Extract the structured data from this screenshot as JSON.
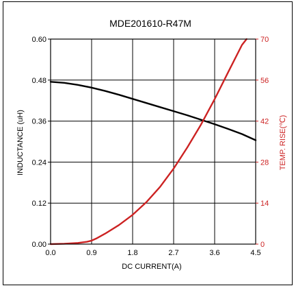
{
  "chart_data": {
    "type": "line",
    "title": "MDE201610-R47M",
    "xlabel": "DC CURRENT(A)",
    "ylabel_left": "INDUCTANCE (uH)",
    "ylabel_right": "TEMP. RISE(℃)",
    "xlim": [
      0,
      4.5
    ],
    "ylim_left": [
      0,
      0.6
    ],
    "ylim_right": [
      0,
      70
    ],
    "x_ticks": [
      "0.0",
      "0.9",
      "1.8",
      "2.7",
      "3.6",
      "4.5"
    ],
    "y_ticks_left": [
      "0.00",
      "0.12",
      "0.24",
      "0.36",
      "0.48",
      "0.60"
    ],
    "y_ticks_right": [
      "0",
      "14",
      "28",
      "42",
      "56",
      "70"
    ],
    "grid": true,
    "colors": {
      "inductance": "#000000",
      "temp_rise": "#cc2222",
      "right_axis_text": "#cc2222"
    },
    "series": [
      {
        "axis": "left",
        "x": [
          0,
          0.3,
          0.6,
          0.9,
          1.2,
          1.5,
          1.8,
          2.1,
          2.4,
          2.7,
          3.0,
          3.3,
          3.6,
          3.9,
          4.2,
          4.5
        ],
        "values": [
          0.475,
          0.472,
          0.466,
          0.458,
          0.448,
          0.437,
          0.425,
          0.413,
          0.401,
          0.389,
          0.377,
          0.364,
          0.351,
          0.337,
          0.322,
          0.304
        ]
      },
      {
        "axis": "right",
        "x": [
          0,
          0.3,
          0.6,
          0.8,
          0.9,
          1.0,
          1.2,
          1.5,
          1.8,
          2.1,
          2.4,
          2.7,
          3.0,
          3.3,
          3.6,
          3.9,
          4.2,
          4.3
        ],
        "values": [
          0,
          0.15,
          0.4,
          0.8,
          1.2,
          1.9,
          3.6,
          6.5,
          10,
          14.3,
          19.5,
          25.8,
          33,
          40.8,
          49.5,
          58.8,
          68,
          70
        ]
      }
    ]
  }
}
